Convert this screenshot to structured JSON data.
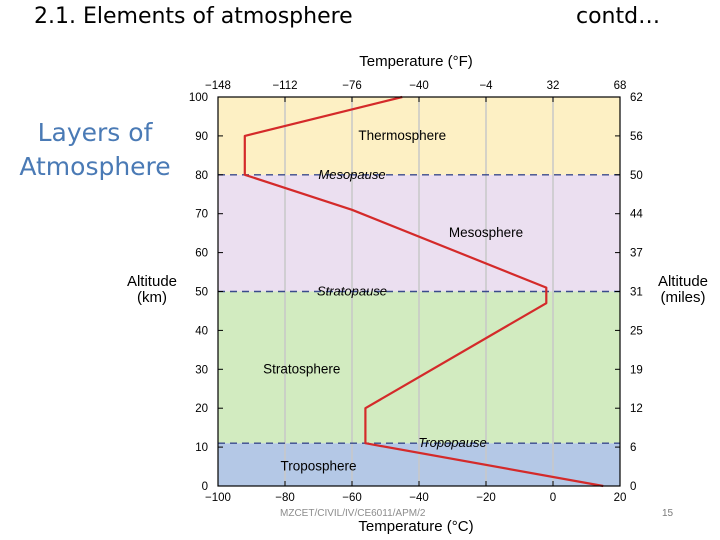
{
  "slide": {
    "title": "2.1. Elements of atmosphere",
    "contd": "contd…",
    "side_heading_line1": "Layers of",
    "side_heading_line2": "Atmosphere",
    "footer": "MZCET/CIVIL/IV/CE6011/APM/2",
    "page_number": "15"
  },
  "chart_data": {
    "type": "line",
    "title": "",
    "top_axis_label": "Temperature (°F)",
    "bottom_axis_label": "Temperature (°C)",
    "left_axis_label": [
      "Altitude",
      "(km)"
    ],
    "right_axis_label": [
      "Altitude",
      "(miles)"
    ],
    "xlim": [
      -100,
      20
    ],
    "ylim": [
      0,
      100
    ],
    "bottom_ticks": [
      {
        "value": -100,
        "label": "−100"
      },
      {
        "value": -80,
        "label": "−80"
      },
      {
        "value": -60,
        "label": "−60"
      },
      {
        "value": -40,
        "label": "−40"
      },
      {
        "value": -20,
        "label": "−20"
      },
      {
        "value": 0,
        "label": "0"
      },
      {
        "value": 20,
        "label": "20"
      }
    ],
    "top_ticks": [
      {
        "value": -100,
        "label": "−148"
      },
      {
        "value": -80,
        "label": "−112"
      },
      {
        "value": -60,
        "label": "−76"
      },
      {
        "value": -40,
        "label": "−40"
      },
      {
        "value": -20,
        "label": "−4"
      },
      {
        "value": 0,
        "label": "32"
      },
      {
        "value": 20,
        "label": "68"
      }
    ],
    "left_ticks": [
      {
        "value": 0,
        "label": "0"
      },
      {
        "value": 10,
        "label": "10"
      },
      {
        "value": 20,
        "label": "20"
      },
      {
        "value": 30,
        "label": "30"
      },
      {
        "value": 40,
        "label": "40"
      },
      {
        "value": 50,
        "label": "50"
      },
      {
        "value": 60,
        "label": "60"
      },
      {
        "value": 70,
        "label": "70"
      },
      {
        "value": 80,
        "label": "80"
      },
      {
        "value": 90,
        "label": "90"
      },
      {
        "value": 100,
        "label": "100"
      }
    ],
    "right_ticks": [
      {
        "value": 0,
        "label": "0"
      },
      {
        "value": 10,
        "label": "6"
      },
      {
        "value": 20,
        "label": "12"
      },
      {
        "value": 30,
        "label": "19"
      },
      {
        "value": 40,
        "label": "25"
      },
      {
        "value": 50,
        "label": "31"
      },
      {
        "value": 60,
        "label": "37"
      },
      {
        "value": 70,
        "label": "44"
      },
      {
        "value": 80,
        "label": "50"
      },
      {
        "value": 90,
        "label": "56"
      },
      {
        "value": 100,
        "label": "62"
      }
    ],
    "layers": [
      {
        "name": "Troposphere",
        "from": 0,
        "to": 11,
        "color": "#b4c8e6",
        "label_x": -70,
        "label_y": 5
      },
      {
        "name": "Stratosphere",
        "from": 11,
        "to": 50,
        "color": "#d2ebc0",
        "label_x": -75,
        "label_y": 30
      },
      {
        "name": "Mesosphere",
        "from": 50,
        "to": 80,
        "color": "#ebdff0",
        "label_x": -20,
        "label_y": 65
      },
      {
        "name": "Thermosphere",
        "from": 80,
        "to": 100,
        "color": "#fdf0c4",
        "label_x": -45,
        "label_y": 90
      }
    ],
    "boundaries": [
      {
        "name": "Tropopause",
        "altitude": 11,
        "label_x": -30
      },
      {
        "name": "Stratopause",
        "altitude": 50,
        "label_x": -60
      },
      {
        "name": "Mesopause",
        "altitude": 80,
        "label_x": -60
      }
    ],
    "profile": [
      {
        "x": 15,
        "y": 0
      },
      {
        "x": -56,
        "y": 11
      },
      {
        "x": -56,
        "y": 20
      },
      {
        "x": -2,
        "y": 47
      },
      {
        "x": -2,
        "y": 51
      },
      {
        "x": -60,
        "y": 71
      },
      {
        "x": -92,
        "y": 80
      },
      {
        "x": -92,
        "y": 90
      },
      {
        "x": -45,
        "y": 100
      }
    ],
    "colors": {
      "profile": "#d42a2a",
      "boundary": "#3a4a8c",
      "grid": "#c8c8c8"
    }
  }
}
